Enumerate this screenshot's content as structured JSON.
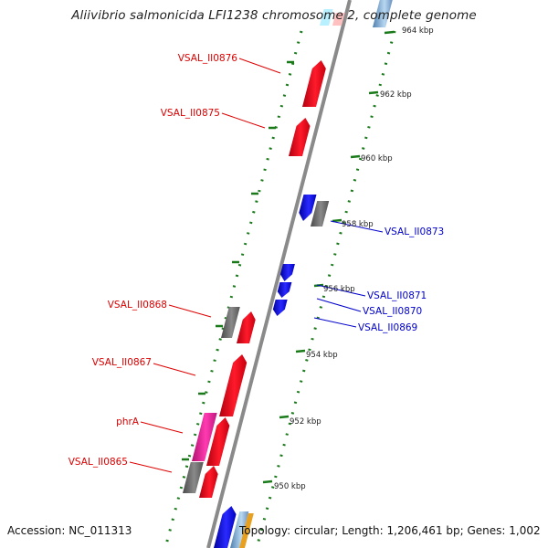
{
  "title": "Aliivibrio salmonicida LFI1238 chromosome 2, complete genome",
  "footer": {
    "accession": "Accession: NC_011313",
    "summary": "Topology: circular; Length: 1,206,461 bp; Genes: 1,002"
  },
  "scale_labels": [
    "964 kbp",
    "962 kbp",
    "960 kbp",
    "958 kbp",
    "956 kbp",
    "954 kbp",
    "952 kbp",
    "950 kbp"
  ],
  "genes_left": [
    "VSAL_II0876",
    "VSAL_II0875",
    "VSAL_II0868",
    "VSAL_II0867",
    "phrA",
    "VSAL_II0865"
  ],
  "genes_right": [
    "VSAL_II0873",
    "VSAL_II0871",
    "VSAL_II0870",
    "VSAL_II0869"
  ],
  "colors": {
    "backbone": "#8a8a8a",
    "scale_tick": "#1a7a1a",
    "forward_gene": "#e8001c",
    "reverse_gene": "#1010e0",
    "pseudo_gene": "#707070",
    "rna_gene": "#e0209a",
    "label_left": "#dd0000",
    "label_right": "#0000cc"
  }
}
